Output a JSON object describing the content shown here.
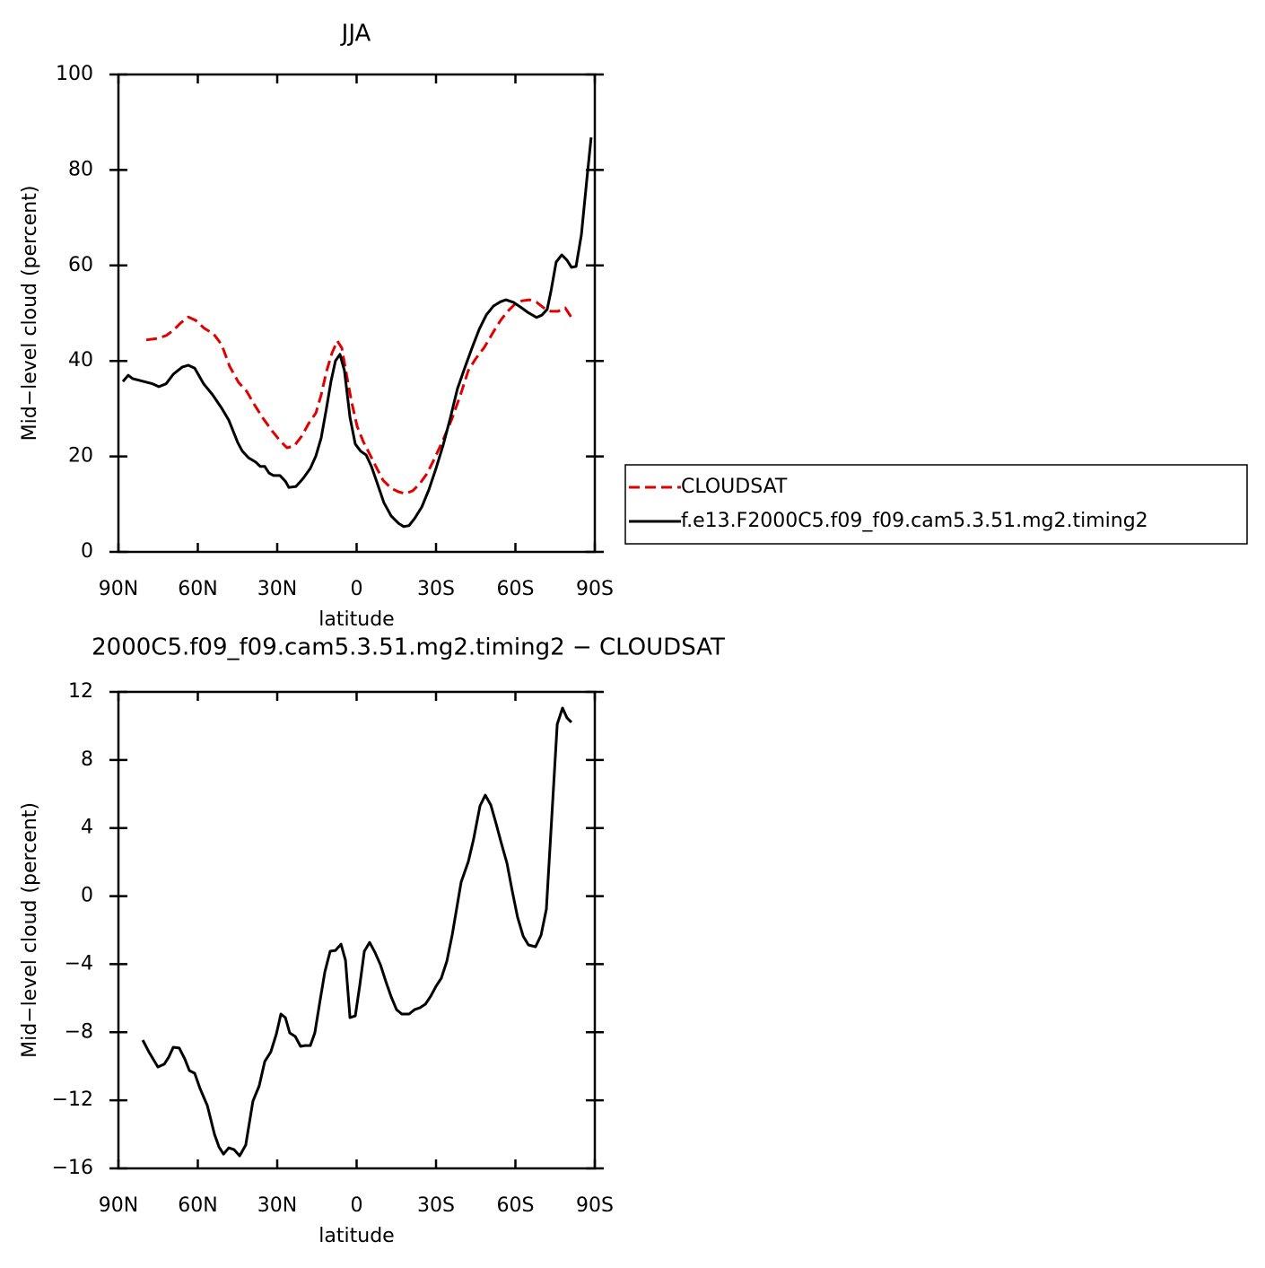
{
  "chart_data": [
    {
      "type": "line",
      "title": "JJA",
      "xlabel": "latitude",
      "ylabel": "Mid−level cloud (percent)",
      "xlim": [
        90,
        -90
      ],
      "xticks": [
        {
          "value": 90,
          "label": "90N"
        },
        {
          "value": 60,
          "label": "60N"
        },
        {
          "value": 30,
          "label": "30N"
        },
        0,
        {
          "value": -30,
          "label": "30S"
        },
        {
          "value": -60,
          "label": "60S"
        },
        {
          "value": -90,
          "label": "90S"
        }
      ],
      "ylim": [
        0,
        100
      ],
      "yticks": [
        0,
        20,
        40,
        60,
        80,
        100
      ],
      "legend": "outside-right",
      "series": [
        {
          "name": "CLOUDSAT",
          "color": "#e00000",
          "dash": true,
          "x": [
            79.5,
            75.4,
            72.0,
            69.3,
            66.6,
            63.6,
            60.8,
            57.5,
            54.1,
            51.0,
            48.0,
            44.6,
            41.5,
            38.8,
            35.4,
            32.0,
            29.0,
            26.3,
            23.6,
            20.8,
            18.1,
            15.4,
            13.4,
            11.4,
            9.3,
            7.3,
            5.6,
            3.9,
            1.9,
            -0.2,
            -2.5,
            -4.9,
            -7.3,
            -10.0,
            -13.1,
            -15.8,
            -18.5,
            -21.2,
            -23.9,
            -26.6,
            -29.3,
            -32.7,
            -36.1,
            -39.5,
            -42.2,
            -44.9,
            -48.3,
            -51.7,
            -54.4,
            -57.1,
            -59.8,
            -62.5,
            -65.3,
            -68.0,
            -70.7,
            -73.4,
            -76.1,
            -78.8,
            -81.2
          ],
          "values": [
            44.4,
            44.7,
            45.3,
            46.4,
            47.9,
            49.2,
            48.5,
            46.8,
            45.7,
            43.4,
            38.9,
            35.5,
            33.6,
            31.0,
            28.0,
            25.4,
            23.3,
            21.8,
            22.2,
            24.2,
            26.9,
            29.1,
            32.9,
            37.8,
            41.7,
            44.2,
            42.7,
            37.4,
            31.4,
            26.3,
            23.1,
            20.5,
            17.9,
            15.0,
            13.3,
            12.6,
            12.2,
            12.8,
            14.3,
            16.4,
            19.4,
            23.5,
            28.0,
            33.3,
            38.0,
            40.4,
            42.9,
            46.1,
            48.5,
            50.4,
            51.9,
            52.6,
            52.8,
            52.3,
            51.1,
            50.4,
            50.4,
            51.1,
            49.1
          ]
        },
        {
          "name": "f.e13.F2000C5.f09_f09.cam5.3.51.mg2.timing2",
          "color": "#000000",
          "dash": false,
          "x": [
            88.3,
            86.3,
            84.6,
            80.5,
            77.1,
            74.7,
            72.0,
            69.3,
            65.9,
            63.6,
            61.2,
            57.8,
            54.4,
            51.0,
            48.3,
            44.9,
            43.2,
            40.8,
            38.1,
            36.4,
            34.7,
            33.1,
            31.4,
            29.0,
            26.9,
            25.6,
            22.9,
            20.2,
            17.5,
            15.4,
            13.4,
            11.4,
            9.7,
            8.0,
            6.3,
            4.6,
            2.5,
            0.5,
            -1.5,
            -3.6,
            -5.6,
            -7.6,
            -10.3,
            -13.1,
            -15.8,
            -17.8,
            -19.8,
            -21.9,
            -24.6,
            -27.3,
            -30.0,
            -32.7,
            -35.4,
            -38.1,
            -40.8,
            -43.6,
            -46.3,
            -49.0,
            -51.7,
            -54.4,
            -56.4,
            -59.2,
            -61.9,
            -64.6,
            -68.0,
            -70.0,
            -72.0,
            -73.4,
            -75.4,
            -77.5,
            -79.5,
            -81.2,
            -82.9,
            -84.9,
            -87.0,
            -88.6
          ],
          "values": [
            35.7,
            37.0,
            36.3,
            35.7,
            35.2,
            34.6,
            35.2,
            37.2,
            38.7,
            39.1,
            38.5,
            35.2,
            32.9,
            30.1,
            27.6,
            22.9,
            21.1,
            19.7,
            18.8,
            17.9,
            17.9,
            16.5,
            16.0,
            16.0,
            14.8,
            13.5,
            13.7,
            15.4,
            17.5,
            20.1,
            23.9,
            30.1,
            35.7,
            40.0,
            41.4,
            38.0,
            28.2,
            22.6,
            21.1,
            20.3,
            17.9,
            14.7,
            10.3,
            7.5,
            6.0,
            5.3,
            5.5,
            7.0,
            9.4,
            13.0,
            17.5,
            22.4,
            28.0,
            34.2,
            38.5,
            42.7,
            46.6,
            49.6,
            51.5,
            52.4,
            52.8,
            52.3,
            51.3,
            50.2,
            49.1,
            49.6,
            50.8,
            54.5,
            60.7,
            62.2,
            61.1,
            59.6,
            59.8,
            66.4,
            78.0,
            86.8
          ]
        }
      ]
    },
    {
      "type": "line",
      "title": "2000C5.f09_f09.cam5.3.51.mg2.timing2 − CLOUDSAT",
      "xlabel": "latitude",
      "ylabel": "Mid−level cloud (percent)",
      "xlim": [
        90,
        -90
      ],
      "xticks": [
        {
          "value": 90,
          "label": "90N"
        },
        {
          "value": 60,
          "label": "60N"
        },
        {
          "value": 30,
          "label": "30N"
        },
        0,
        {
          "value": -30,
          "label": "30S"
        },
        {
          "value": -60,
          "label": "60S"
        },
        {
          "value": -90,
          "label": "90S"
        }
      ],
      "ylim": [
        -16,
        12
      ],
      "yticks": [
        {
          "value": -16,
          "label": "−16"
        },
        {
          "value": -12,
          "label": "−12"
        },
        {
          "value": -8,
          "label": "−8"
        },
        {
          "value": -4,
          "label": "−4"
        },
        0,
        4,
        8,
        12
      ],
      "color": "#000000",
      "x": [
        80.8,
        78.5,
        75.1,
        72.7,
        71.0,
        69.3,
        67.0,
        64.9,
        63.2,
        61.2,
        59.2,
        56.4,
        53.7,
        52.0,
        50.3,
        48.3,
        46.3,
        44.2,
        41.9,
        39.2,
        36.8,
        34.7,
        32.4,
        30.3,
        28.6,
        26.9,
        25.3,
        23.2,
        21.2,
        19.5,
        17.5,
        15.8,
        13.7,
        12.0,
        10.0,
        8.0,
        5.9,
        4.2,
        2.5,
        0.5,
        -1.2,
        -2.9,
        -4.9,
        -6.9,
        -9.0,
        -11.0,
        -13.1,
        -15.1,
        -17.1,
        -19.8,
        -21.9,
        -23.9,
        -26.0,
        -28.0,
        -30.0,
        -32.0,
        -34.1,
        -36.1,
        -39.5,
        -42.2,
        -44.2,
        -46.6,
        -48.6,
        -50.7,
        -52.7,
        -54.7,
        -56.8,
        -58.8,
        -60.8,
        -62.9,
        -64.9,
        -67.6,
        -69.7,
        -71.7,
        -75.8,
        -77.8,
        -79.5,
        -81.2
      ],
      "values": [
        -8.46,
        -9.15,
        -10.04,
        -9.88,
        -9.46,
        -8.88,
        -8.93,
        -9.57,
        -10.25,
        -10.41,
        -11.3,
        -12.31,
        -14.0,
        -14.74,
        -15.16,
        -14.79,
        -14.9,
        -15.26,
        -14.63,
        -12.05,
        -11.15,
        -9.72,
        -9.15,
        -8.09,
        -6.93,
        -7.14,
        -8.04,
        -8.25,
        -8.83,
        -8.78,
        -8.78,
        -8.04,
        -6.03,
        -4.45,
        -3.24,
        -3.19,
        -2.82,
        -3.77,
        -7.14,
        -7.04,
        -5.25,
        -3.24,
        -2.72,
        -3.3,
        -4.04,
        -4.99,
        -5.93,
        -6.67,
        -6.93,
        -6.93,
        -6.67,
        -6.56,
        -6.35,
        -5.88,
        -5.3,
        -4.82,
        -3.82,
        -2.29,
        0.82,
        2.03,
        3.35,
        5.3,
        5.93,
        5.35,
        4.25,
        3.09,
        1.93,
        0.29,
        -1.24,
        -2.35,
        -2.87,
        -2.98,
        -2.29,
        -0.76,
        10.1,
        11.05,
        10.47,
        10.21
      ]
    }
  ]
}
